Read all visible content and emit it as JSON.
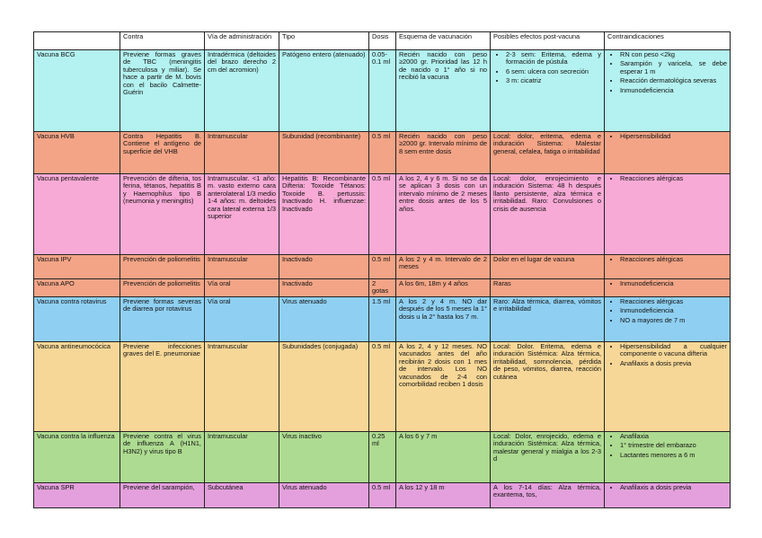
{
  "table": {
    "columns": [
      "Contra",
      "Vía de administración",
      "Tipo",
      "Dosis",
      "Esquema de vacunación",
      "Posibles efectos post-vacuna",
      "Contraindicaciones"
    ],
    "rows": [
      {
        "name": "Vacuna BCG",
        "color": "#b3f2f0",
        "cells": [
          "Previene formas graves de TBC (meningitis tuberculosa y miliar). Se hace a partir de M. bovis con el bacilo Calmette-Guérin",
          "Intradérmica (deltoides del brazo derecho 2 cm del acromion)",
          "Patógeno entero (atenuado)",
          "0.05-0.1 ml",
          "Recién nacido con peso ≥2000 gr. Prioridad las 12 h de nacido o 1° año si no recibió la vacuna",
          [
            "2-3 sem: Eritema, edema y formación de pústula",
            "6 sem: ulcera con secreción",
            "3 m: cicatriz"
          ]
        ],
        "contraindications": [
          "RN con peso <2kg",
          "Sarampión y varicela, se debe esperar 1 m",
          "Reacción dermatológica severas",
          "Inmunodeficiencia"
        ]
      },
      {
        "name": "Vacuna HVB",
        "color": "#f3a486",
        "cells": [
          "Contra Hepatitis B. Contiene el antígeno de superficie del VHB",
          "Intramuscular",
          "Subunidad (recombinante)",
          "0.5 ml",
          "Recién nacido con peso ≥2000 gr. Intervalo mínimo de 8 sem entre dosis",
          "Local: dolor, eritema, edema e induración Sistema: Malestar general, cefalea, fatiga o irritabilidad"
        ],
        "contraindications": [
          "Hipersensibilidad"
        ]
      },
      {
        "name": "Vacuna pentavalente",
        "color": "#f8aad6",
        "cells": [
          "Prevención de difteria, tos ferina, tétanos, hepatitis B y Haemophilus tipo B (neumonia y meningitis)",
          "Intramuscular. <1 año: m. vasto externo cara anterolateral 1/3 medio 1-4 años: m. deltoides cara lateral externa 1/3 superior",
          "Hepatitis B: Recombinante Difteria: Toxoide Tétanos: Toxoide B. pertussis: Inactivado H. influenzae: Inactivado",
          "0.5 ml",
          "A los 2, 4 y 6 m. Si no se da se aplican 3 dosis con un intervalo mínimo de 2 meses entre dosis antes de los 5 años.",
          "Local: dolor, enrojecimiento e induración Sistema: 48 h después llanto persistente, alza térmica e irritabilidad. Raro: Convulsiones o crisis de ausencia"
        ],
        "contraindications": [
          "Reacciones alérgicas"
        ]
      },
      {
        "name": "Vacuna IPV",
        "color": "#f3a486",
        "cells": [
          "Prevención de poliomelitis",
          "Intramuscular",
          "Inactivado",
          "0.5 ml",
          "A los 2 y 4 m. Intervalo de 2 meses",
          "Dolor en el lugar de vacuna"
        ],
        "contraindications": [
          "Reacciones alérgicas"
        ]
      },
      {
        "name": "Vacuna APO",
        "color": "#f3a486",
        "cells": [
          "Prevención de poliomelitis",
          "Vía oral",
          "Inactivado",
          "2 gotas",
          "A los 6m, 18m y 4 años",
          "Raras"
        ],
        "contraindications": [
          "Inmunodeficiencia"
        ]
      },
      {
        "name": "Vacuna contra rotavirus",
        "color": "#8fd0f2",
        "cells": [
          "Previene formas severas de diarrea por rotavirus",
          "Vía oral",
          "Virus atenuado",
          "1.5 ml",
          "A los 2 y 4 m. NO dar después de los 5 meses la 1° dosis u la 2° hasta los 7 m.",
          "Raro: Alza térmica, diarrea, vómitos e irritabilidad"
        ],
        "contraindications": [
          "Reacciones alérgicas",
          "Inmunodeficiencia",
          "NO a mayores de 7 m"
        ]
      },
      {
        "name": "Vacuna antineumocócica",
        "color": "#f6d797",
        "cells": [
          "Previene infecciones graves del E. pneumoniae",
          "Intramuscular",
          "Subunidades (conjugada)",
          "0.5 ml",
          "A los 2, 4 y 12 meses. NO vacunados antes del año recibirán 2 dosis con 1 mes de intervalo. Los NO vacunados de 2-4 con comorbilidad reciben 1 dosis",
          "Local: Dolor. Eritema, edema e induración Sistémica: Alza térmica, irritabilidad, somnolencia, pérdida de peso, vómitos, diarrea, reacción cutánea"
        ],
        "contraindications": [
          "Hipersensibilidad a cualquier componente o vacuna difteria",
          "Anafilaxis a dosis previa"
        ]
      },
      {
        "name": "Vacuna contra la influenza",
        "color": "#addb91",
        "cells": [
          "Previene contra el virus de influenza A (H1N1, H3N2) y virus tipo B",
          "Intramuscular",
          "Virus inactivo",
          "0.25 ml",
          "A los 6 y 7 m",
          "Local: Dolor, enrojecido, edema e induración Sistémica: Alza térmica, malestar general y mialgia a los 2-3 d"
        ],
        "contraindications": [
          "Anafilaxia",
          "1° trimestre del embarazo",
          "Lactantes menores a 6 m"
        ]
      },
      {
        "name": "Vacuna SPR",
        "color": "#e3a0dc",
        "cells": [
          "Previene del sarampión,",
          "Subcutánea",
          "Virus atenuado",
          "0.5 ml",
          "A los 12 y 18 m",
          "A los 7-14 días: Alza térmica, exantema, tos,"
        ],
        "contraindications": [
          "Anafilaxis a dosis previa"
        ]
      }
    ]
  }
}
